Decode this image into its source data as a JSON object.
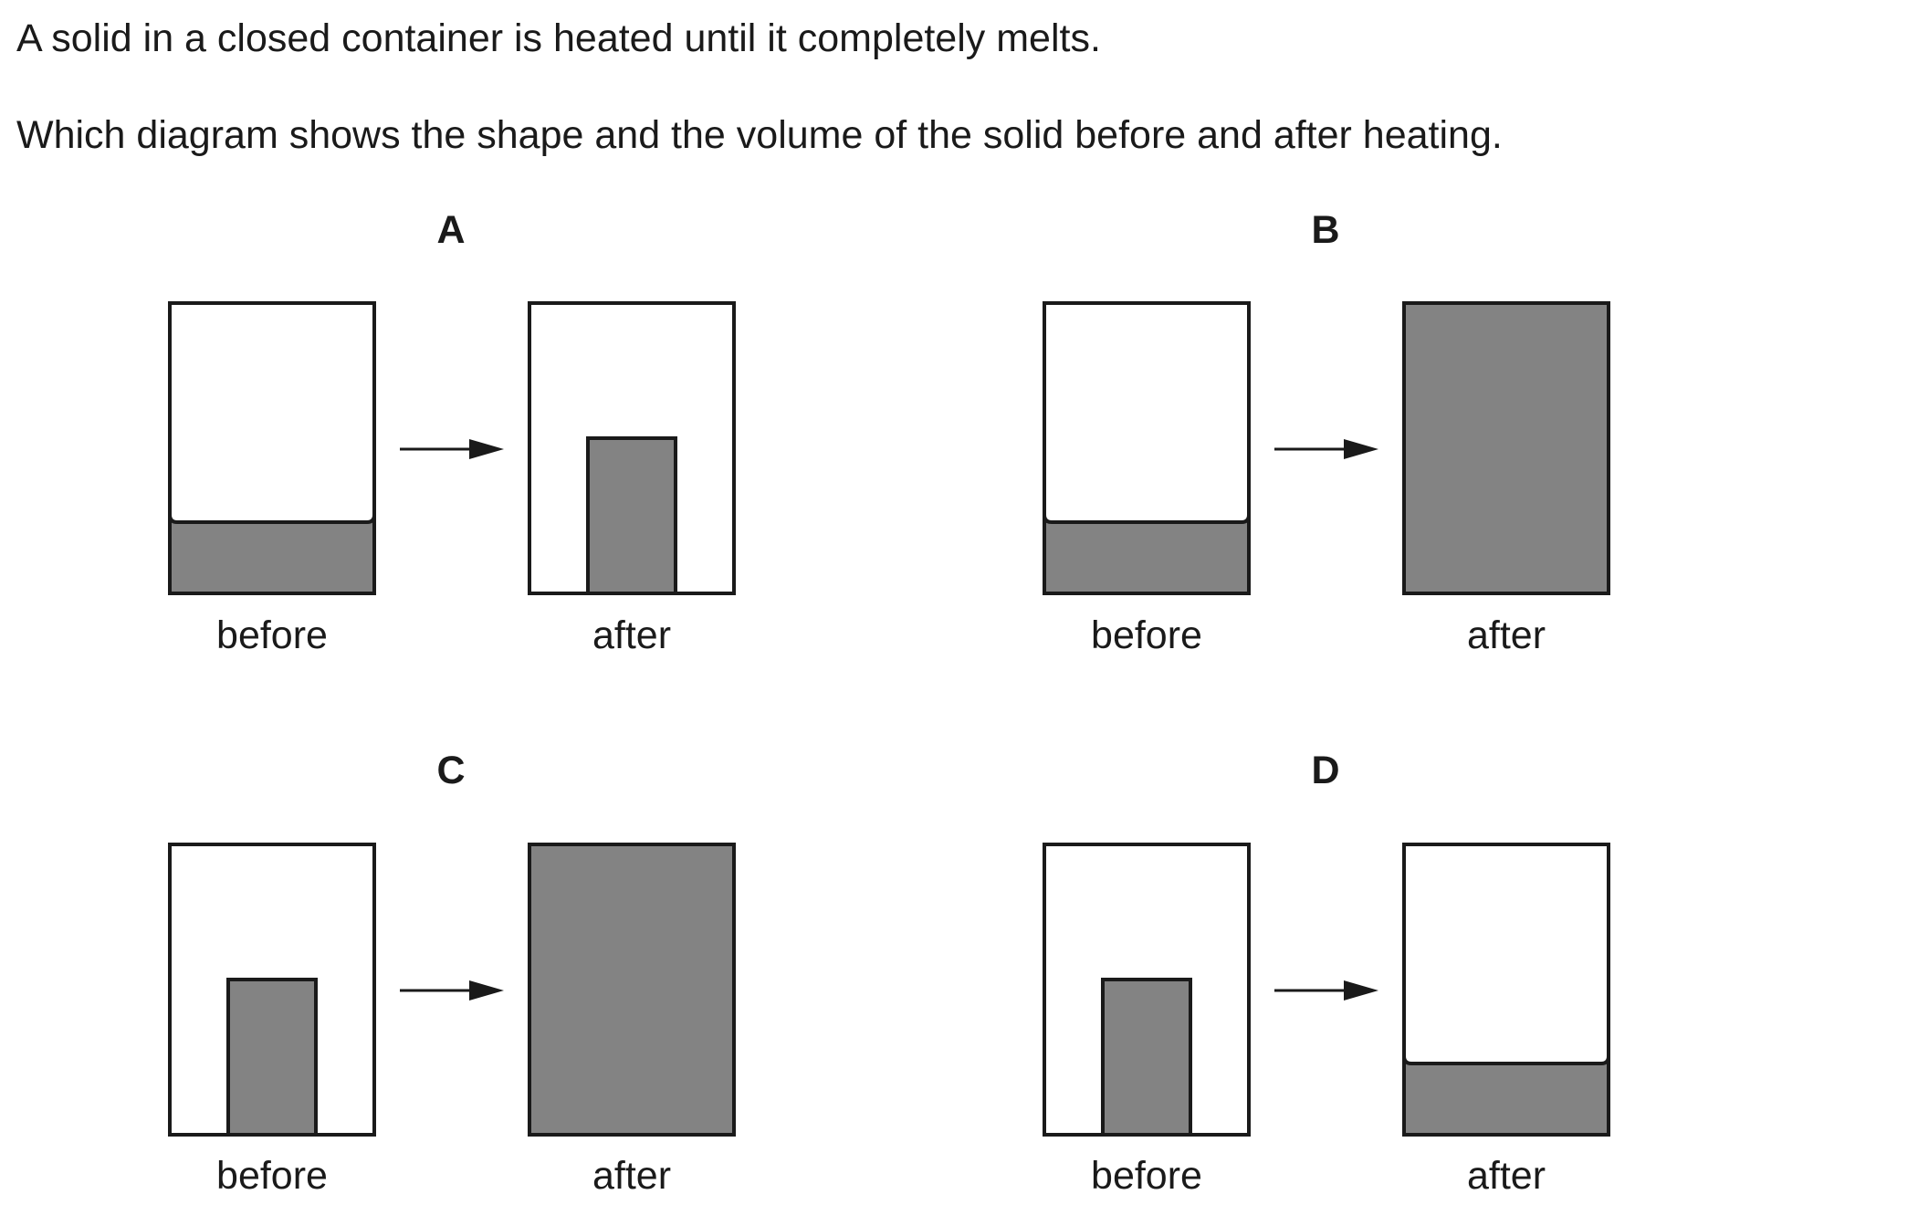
{
  "question": {
    "line1": "A solid in a closed container is heated until it completely melts.",
    "line2": "Which diagram shows the shape and the volume of the solid before and after heating."
  },
  "colors": {
    "fill": "#838383",
    "stroke": "#1a1a1a",
    "background": "#ffffff"
  },
  "options": [
    {
      "letter": "A",
      "before_label": "before",
      "after_label": "after",
      "before_state": "liquid-layer",
      "after_state": "solid-block"
    },
    {
      "letter": "B",
      "before_label": "before",
      "after_label": "after",
      "before_state": "liquid-layer",
      "after_state": "full"
    },
    {
      "letter": "C",
      "before_label": "before",
      "after_label": "after",
      "before_state": "solid-block",
      "after_state": "full"
    },
    {
      "letter": "D",
      "before_label": "before",
      "after_label": "after",
      "before_state": "solid-block",
      "after_state": "liquid-layer"
    }
  ]
}
